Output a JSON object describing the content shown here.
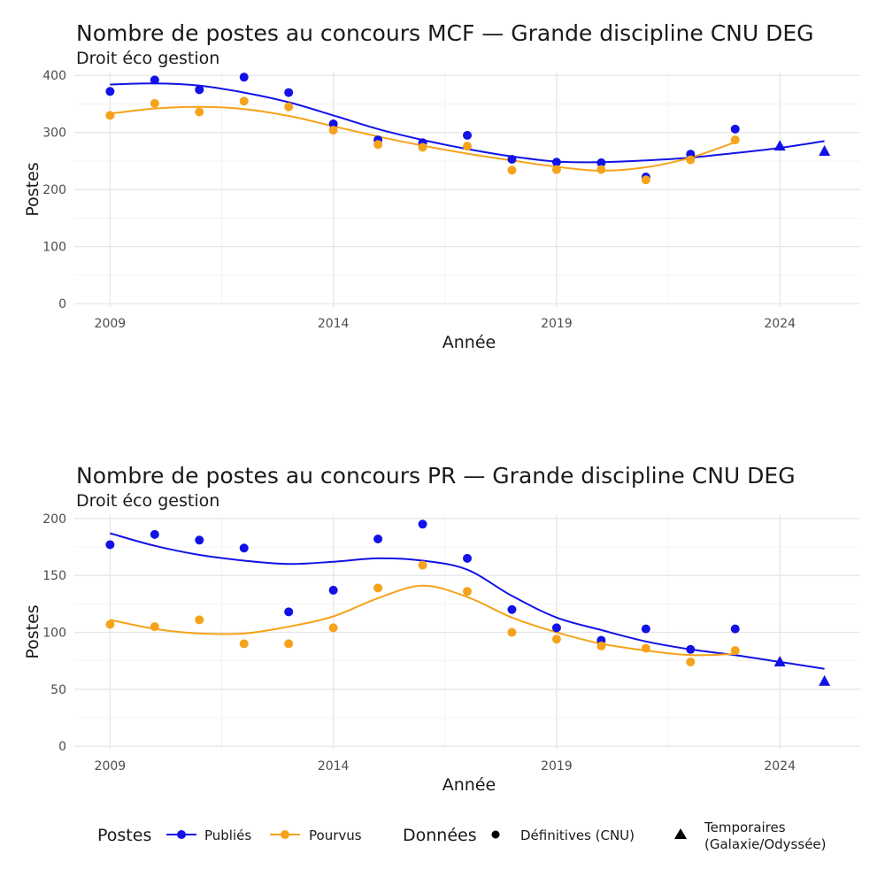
{
  "colors": {
    "publies": "#1212e6",
    "pourvus": "#f5a31a"
  },
  "chart_data": [
    {
      "type": "scatter",
      "title": "Nombre de postes au concours MCF —  Grande discipline CNU DEG",
      "subtitle": "Droit éco gestion",
      "xlabel": "Année",
      "ylabel": "Postes",
      "xlim": [
        2008.2,
        2025.8
      ],
      "ylim": [
        -6,
        405
      ],
      "x_ticks": [
        2009,
        2014,
        2019,
        2024
      ],
      "y_ticks": [
        0,
        100,
        200,
        300,
        400
      ],
      "x_tick_labels": [
        "2009",
        "2014",
        "2019",
        "2024"
      ],
      "y_tick_labels": [
        "0",
        "100",
        "200",
        "300",
        "400"
      ],
      "series": [
        {
          "name": "Publiés",
          "color_key": "publies",
          "x": [
            2009,
            2010,
            2011,
            2012,
            2013,
            2014,
            2015,
            2016,
            2017,
            2018,
            2019,
            2020,
            2021,
            2022,
            2023
          ],
          "values": [
            372,
            392,
            375,
            397,
            370,
            315,
            287,
            282,
            295,
            253,
            248,
            247,
            222,
            262,
            306
          ],
          "temp_x": [
            2024,
            2025
          ],
          "temp_values": [
            276,
            267
          ],
          "smooth": [
            [
              2009,
              384
            ],
            [
              2010,
              386
            ],
            [
              2011,
              382
            ],
            [
              2012,
              370
            ],
            [
              2013,
              353
            ],
            [
              2014,
              330
            ],
            [
              2015,
              306
            ],
            [
              2016,
              287
            ],
            [
              2017,
              271
            ],
            [
              2018,
              258
            ],
            [
              2019,
              249
            ],
            [
              2020,
              248
            ],
            [
              2021,
              251
            ],
            [
              2022,
              256
            ],
            [
              2023,
              264
            ],
            [
              2024,
              273
            ],
            [
              2025,
              285
            ]
          ]
        },
        {
          "name": "Pourvus",
          "color_key": "pourvus",
          "x": [
            2009,
            2010,
            2011,
            2012,
            2013,
            2014,
            2015,
            2016,
            2017,
            2018,
            2019,
            2020,
            2021,
            2022,
            2023
          ],
          "values": [
            330,
            351,
            336,
            355,
            345,
            304,
            279,
            274,
            276,
            234,
            235,
            235,
            217,
            252,
            287
          ],
          "temp_x": [],
          "temp_values": [],
          "smooth": [
            [
              2009,
              333
            ],
            [
              2010,
              342
            ],
            [
              2011,
              345
            ],
            [
              2012,
              341
            ],
            [
              2013,
              329
            ],
            [
              2014,
              311
            ],
            [
              2015,
              293
            ],
            [
              2016,
              277
            ],
            [
              2017,
              263
            ],
            [
              2018,
              251
            ],
            [
              2019,
              240
            ],
            [
              2020,
              233
            ],
            [
              2021,
              239
            ],
            [
              2022,
              256
            ],
            [
              2023,
              283
            ]
          ]
        }
      ]
    },
    {
      "type": "scatter",
      "title": "Nombre de postes au concours PR —  Grande discipline CNU DEG",
      "subtitle": "Droit éco gestion",
      "xlabel": "Année",
      "ylabel": "Postes",
      "xlim": [
        2008.2,
        2025.8
      ],
      "ylim": [
        -3,
        203
      ],
      "x_ticks": [
        2009,
        2014,
        2019,
        2024
      ],
      "y_ticks": [
        0,
        50,
        100,
        150,
        200
      ],
      "x_tick_labels": [
        "2009",
        "2014",
        "2019",
        "2024"
      ],
      "y_tick_labels": [
        "0",
        "50",
        "100",
        "150",
        "200"
      ],
      "series": [
        {
          "name": "Publiés",
          "color_key": "publies",
          "x": [
            2009,
            2010,
            2011,
            2012,
            2013,
            2014,
            2015,
            2016,
            2017,
            2018,
            2019,
            2020,
            2021,
            2022,
            2023
          ],
          "values": [
            177,
            186,
            181,
            174,
            118,
            137,
            182,
            195,
            165,
            120,
            104,
            93,
            103,
            85,
            103
          ],
          "temp_x": [
            2024,
            2025
          ],
          "temp_values": [
            74,
            57
          ],
          "smooth": [
            [
              2009,
              187
            ],
            [
              2010,
              176
            ],
            [
              2011,
              168
            ],
            [
              2012,
              163
            ],
            [
              2013,
              160
            ],
            [
              2014,
              162
            ],
            [
              2015,
              165
            ],
            [
              2016,
              163
            ],
            [
              2017,
              155
            ],
            [
              2018,
              132
            ],
            [
              2019,
              113
            ],
            [
              2020,
              102
            ],
            [
              2021,
              92
            ],
            [
              2022,
              85
            ],
            [
              2023,
              80
            ],
            [
              2024,
              74
            ],
            [
              2025,
              68
            ]
          ]
        },
        {
          "name": "Pourvus",
          "color_key": "pourvus",
          "x": [
            2009,
            2010,
            2011,
            2012,
            2013,
            2014,
            2015,
            2016,
            2017,
            2018,
            2019,
            2020,
            2021,
            2022,
            2023
          ],
          "values": [
            107,
            105,
            111,
            90,
            90,
            104,
            139,
            159,
            136,
            100,
            94,
            88,
            86,
            74,
            84
          ],
          "temp_x": [],
          "temp_values": [],
          "smooth": [
            [
              2009,
              111
            ],
            [
              2010,
              103
            ],
            [
              2011,
              99
            ],
            [
              2012,
              99
            ],
            [
              2013,
              105
            ],
            [
              2014,
              114
            ],
            [
              2015,
              130
            ],
            [
              2016,
              141
            ],
            [
              2017,
              131
            ],
            [
              2018,
              113
            ],
            [
              2019,
              100
            ],
            [
              2020,
              90
            ],
            [
              2021,
              84
            ],
            [
              2022,
              80
            ],
            [
              2023,
              81
            ]
          ]
        }
      ]
    }
  ],
  "legend": {
    "postes_title": "Postes",
    "publies_label": "Publiés",
    "pourvus_label": "Pourvus",
    "donnees_title": "Données",
    "definitives_label": "Définitives (CNU)",
    "temporaires_line1": "Temporaires",
    "temporaires_line2": "(Galaxie/Odyssée)"
  }
}
